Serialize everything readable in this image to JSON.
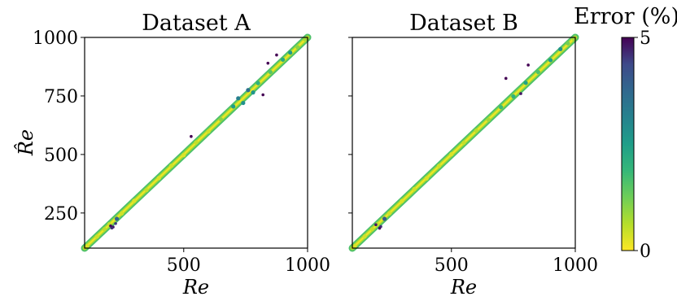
{
  "chart_data": [
    {
      "type": "scatter",
      "title": "Dataset A",
      "xlabel": "Re",
      "ylabel": "R̂e",
      "xlim": [
        100,
        1000
      ],
      "ylim": [
        100,
        1000
      ],
      "xticks": [
        500,
        1000
      ],
      "yticks": [
        250,
        500,
        750,
        1000
      ],
      "color_by": "Error (%)",
      "series": [
        {
          "points": [
            [
              110,
              108,
              0.3
            ],
            [
              150,
              149,
              0.4
            ],
            [
              180,
              181,
              0.6
            ],
            [
              200,
              202,
              0.5
            ],
            [
              215,
              190,
              4.8
            ],
            [
              210,
              186,
              4.6
            ],
            [
              225,
              205,
              4.5
            ],
            [
              230,
              225,
              3.8
            ],
            [
              205,
              195,
              4.9
            ],
            [
              250,
              248,
              0.4
            ],
            [
              300,
              302,
              0.3
            ],
            [
              350,
              348,
              0.5
            ],
            [
              400,
              399,
              0.3
            ],
            [
              450,
              452,
              0.4
            ],
            [
              500,
              497,
              0.3
            ],
            [
              550,
              552,
              0.5
            ],
            [
              600,
              598,
              0.4
            ],
            [
              650,
              650,
              1.0
            ],
            [
              700,
              705,
              2.5
            ],
            [
              720,
              740,
              3.2
            ],
            [
              740,
              720,
              2.8
            ],
            [
              760,
              775,
              3.5
            ],
            [
              780,
              765,
              2.7
            ],
            [
              800,
              805,
              2.0
            ],
            [
              850,
              852,
              1.5
            ],
            [
              900,
              905,
              2.2
            ],
            [
              930,
              935,
              2.6
            ],
            [
              960,
              958,
              1.0
            ],
            [
              990,
              992,
              0.8
            ],
            [
              530,
              577,
              5.0
            ],
            [
              820,
              755,
              5.0
            ],
            [
              840,
              890,
              5.0
            ],
            [
              875,
              925,
              5.0
            ]
          ]
        }
      ]
    },
    {
      "type": "scatter",
      "title": "Dataset B",
      "xlabel": "Re",
      "ylim": [
        100,
        1000
      ],
      "xlim": [
        100,
        1000
      ],
      "xticks": [
        500,
        1000
      ],
      "yticks": [
        250,
        500,
        750,
        1000
      ],
      "color_by": "Error (%)",
      "series": [
        {
          "points": [
            [
              110,
              108,
              0.3
            ],
            [
              150,
              150,
              0.4
            ],
            [
              180,
              181,
              0.5
            ],
            [
              200,
              201,
              0.5
            ],
            [
              195,
              200,
              4.8
            ],
            [
              215,
              192,
              4.6
            ],
            [
              230,
              225,
              4.0
            ],
            [
              210,
              185,
              4.9
            ],
            [
              250,
              249,
              0.4
            ],
            [
              300,
              301,
              0.3
            ],
            [
              350,
              352,
              0.4
            ],
            [
              400,
              398,
              0.3
            ],
            [
              450,
              451,
              0.4
            ],
            [
              500,
              501,
              0.3
            ],
            [
              550,
              550,
              0.5
            ],
            [
              600,
              602,
              0.6
            ],
            [
              650,
              648,
              0.8
            ],
            [
              700,
              702,
              1.8
            ],
            [
              750,
              748,
              2.0
            ],
            [
              800,
              806,
              2.4
            ],
            [
              850,
              852,
              1.6
            ],
            [
              900,
              903,
              2.5
            ],
            [
              940,
              950,
              2.8
            ],
            [
              970,
              975,
              1.2
            ],
            [
              995,
              993,
              0.8
            ],
            [
              720,
              825,
              5.0
            ],
            [
              780,
              760,
              4.8
            ],
            [
              810,
              882,
              5.0
            ]
          ]
        }
      ]
    }
  ],
  "colorbar": {
    "title": "Error (%)",
    "min_label": "0",
    "max_label": "5",
    "min": 0,
    "max": 5,
    "colormap": "viridis_r"
  }
}
